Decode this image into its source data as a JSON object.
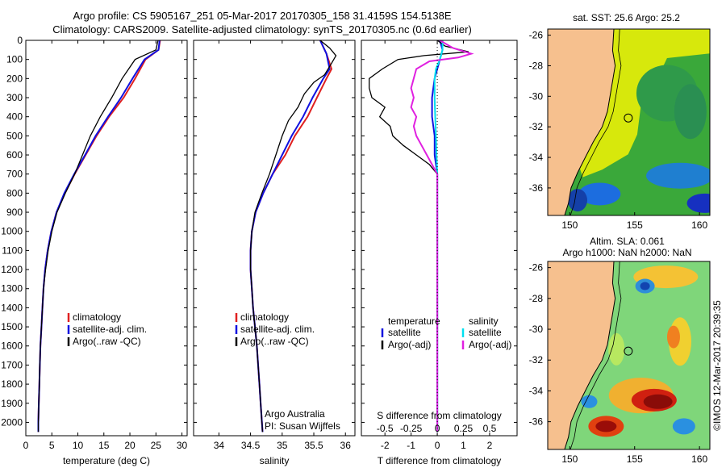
{
  "header": {
    "line1": "Argo profile: CS 5905167_251 05-Mar-2017 20170305_158 31.4159S 154.5138E",
    "line2": "Climatology: CARS2009. Satellite-adjusted climatology: synTS_20170305.nc (0.6d earlier)"
  },
  "colors": {
    "climatology": "#e02020",
    "satellite": "#1010e0",
    "argo": "#000000",
    "salinity_satellite": "#00e0f0",
    "salinity_argo": "#e020e0",
    "land": "#f6c08e"
  },
  "chart_data": [
    {
      "type": "line",
      "panel": "temperature",
      "xlabel": "temperature (deg C)",
      "xlim": [
        0,
        31
      ],
      "xticks": [
        "0",
        "5",
        "10",
        "15",
        "20",
        "25",
        "30"
      ],
      "xtick_values": [
        0,
        5,
        10,
        15,
        20,
        25,
        30
      ],
      "ylim": [
        2070,
        0
      ],
      "yticks": [
        "0",
        "100",
        "200",
        "300",
        "400",
        "500",
        "600",
        "700",
        "800",
        "900",
        "1000",
        "1100",
        "1200",
        "1300",
        "1400",
        "1500",
        "1600",
        "1700",
        "1800",
        "1900",
        "2000"
      ],
      "ytick_values": [
        0,
        100,
        200,
        300,
        400,
        500,
        600,
        700,
        800,
        900,
        1000,
        1100,
        1200,
        1300,
        1400,
        1500,
        1600,
        1700,
        1800,
        1900,
        2000
      ],
      "legend": [
        "climatology",
        "satellite-adj. clim.",
        "Argo(..raw -QC)"
      ],
      "series": [
        {
          "name": "climatology",
          "color": "red",
          "points": [
            [
              25.8,
              0
            ],
            [
              25.5,
              50
            ],
            [
              23,
              100
            ],
            [
              21,
              200
            ],
            [
              18.8,
              300
            ],
            [
              16,
              400
            ],
            [
              13.6,
              500
            ],
            [
              11.5,
              600
            ],
            [
              9.4,
              700
            ],
            [
              7.5,
              800
            ],
            [
              5.9,
              900
            ],
            [
              4.9,
              1000
            ],
            [
              4.2,
              1100
            ],
            [
              3.7,
              1200
            ],
            [
              3.4,
              1300
            ],
            [
              3.2,
              1400
            ],
            [
              3,
              1500
            ],
            [
              2.8,
              1600
            ],
            [
              2.7,
              1700
            ],
            [
              2.6,
              1800
            ],
            [
              2.5,
              1900
            ],
            [
              2.4,
              2000
            ],
            [
              2.4,
              2050
            ]
          ]
        },
        {
          "name": "satellite-adj. clim.",
          "color": "blue",
          "points": [
            [
              25.7,
              0
            ],
            [
              25.5,
              50
            ],
            [
              22.8,
              100
            ],
            [
              20.5,
              200
            ],
            [
              18.3,
              300
            ],
            [
              15.8,
              400
            ],
            [
              13.4,
              500
            ],
            [
              11.4,
              600
            ],
            [
              9.3,
              700
            ],
            [
              7.4,
              800
            ],
            [
              5.9,
              900
            ],
            [
              4.9,
              1000
            ],
            [
              4.2,
              1100
            ],
            [
              3.7,
              1200
            ],
            [
              3.4,
              1300
            ],
            [
              3.2,
              1400
            ],
            [
              3,
              1500
            ],
            [
              2.8,
              1600
            ],
            [
              2.7,
              1700
            ],
            [
              2.6,
              1800
            ],
            [
              2.5,
              1900
            ],
            [
              2.4,
              2000
            ],
            [
              2.4,
              2050
            ]
          ]
        },
        {
          "name": "Argo(..raw -QC)",
          "color": "black",
          "points": [
            [
              25.4,
              0
            ],
            [
              25,
              50
            ],
            [
              21,
              100
            ],
            [
              18.5,
              200
            ],
            [
              16.5,
              300
            ],
            [
              14.3,
              400
            ],
            [
              12.4,
              500
            ],
            [
              10.9,
              600
            ],
            [
              9.4,
              700
            ],
            [
              7.6,
              800
            ],
            [
              6,
              900
            ],
            [
              5,
              1000
            ],
            [
              4.3,
              1100
            ],
            [
              3.8,
              1200
            ],
            [
              3.4,
              1300
            ],
            [
              3.2,
              1400
            ],
            [
              3,
              1500
            ],
            [
              2.8,
              1600
            ],
            [
              2.7,
              1700
            ],
            [
              2.6,
              1800
            ],
            [
              2.5,
              1900
            ],
            [
              2.4,
              2000
            ],
            [
              2.4,
              2050
            ]
          ]
        }
      ]
    },
    {
      "type": "line",
      "panel": "salinity",
      "xlabel": "salinity",
      "xlim": [
        33.6,
        36.15
      ],
      "xticks": [
        "34",
        "34.5",
        "35",
        "35.5",
        "36"
      ],
      "xtick_values": [
        34,
        34.5,
        35,
        35.5,
        36
      ],
      "ylim": [
        2070,
        0
      ],
      "legend": [
        "climatology",
        "satellite-adj. clim.",
        "Argo(..raw -QC)"
      ],
      "annotation": [
        "Argo Australia",
        "PI: Susan Wijffels"
      ],
      "series": [
        {
          "name": "climatology",
          "color": "red",
          "points": [
            [
              35.6,
              0
            ],
            [
              35.7,
              70
            ],
            [
              35.78,
              150
            ],
            [
              35.7,
              200
            ],
            [
              35.55,
              300
            ],
            [
              35.4,
              400
            ],
            [
              35.2,
              500
            ],
            [
              35.05,
              600
            ],
            [
              34.85,
              700
            ],
            [
              34.7,
              800
            ],
            [
              34.58,
              900
            ],
            [
              34.52,
              1000
            ],
            [
              34.5,
              1100
            ],
            [
              34.5,
              1200
            ],
            [
              34.52,
              1300
            ],
            [
              34.54,
              1400
            ],
            [
              34.57,
              1500
            ],
            [
              34.6,
              1600
            ],
            [
              34.62,
              1700
            ],
            [
              34.64,
              1800
            ],
            [
              34.66,
              1900
            ],
            [
              34.68,
              2000
            ],
            [
              34.69,
              2050
            ]
          ]
        },
        {
          "name": "satellite-adj. clim.",
          "color": "blue",
          "points": [
            [
              35.6,
              0
            ],
            [
              35.7,
              70
            ],
            [
              35.75,
              150
            ],
            [
              35.65,
              200
            ],
            [
              35.48,
              300
            ],
            [
              35.33,
              400
            ],
            [
              35.15,
              500
            ],
            [
              35,
              600
            ],
            [
              34.85,
              700
            ],
            [
              34.7,
              800
            ],
            [
              34.58,
              900
            ],
            [
              34.52,
              1000
            ],
            [
              34.5,
              1100
            ],
            [
              34.5,
              1200
            ],
            [
              34.52,
              1300
            ],
            [
              34.54,
              1400
            ],
            [
              34.57,
              1500
            ],
            [
              34.6,
              1600
            ],
            [
              34.62,
              1700
            ],
            [
              34.64,
              1800
            ],
            [
              34.66,
              1900
            ],
            [
              34.68,
              2000
            ],
            [
              34.69,
              2050
            ]
          ]
        },
        {
          "name": "Argo(..raw -QC)",
          "color": "black",
          "points": [
            [
              35.6,
              0
            ],
            [
              35.75,
              40
            ],
            [
              35.85,
              80
            ],
            [
              35.78,
              120
            ],
            [
              35.67,
              180
            ],
            [
              35.5,
              220
            ],
            [
              35.35,
              280
            ],
            [
              35.25,
              350
            ],
            [
              35.1,
              420
            ],
            [
              35,
              500
            ],
            [
              34.9,
              600
            ],
            [
              34.8,
              700
            ],
            [
              34.68,
              800
            ],
            [
              34.57,
              900
            ],
            [
              34.52,
              1000
            ],
            [
              34.5,
              1100
            ],
            [
              34.5,
              1200
            ],
            [
              34.52,
              1300
            ],
            [
              34.54,
              1400
            ],
            [
              34.57,
              1500
            ],
            [
              34.6,
              1600
            ],
            [
              34.62,
              1700
            ],
            [
              34.64,
              1800
            ],
            [
              34.66,
              1900
            ],
            [
              34.68,
              2000
            ],
            [
              34.69,
              2050
            ]
          ]
        }
      ]
    },
    {
      "type": "line",
      "panel": "difference",
      "xlabel": "T difference from climatology",
      "xlabel_top": "S difference from climatology",
      "xlim": [
        -2.9,
        3.05
      ],
      "xticks": [
        "-2",
        "-1",
        "0",
        "1",
        "2"
      ],
      "xtick_values": [
        -2,
        -1,
        0,
        1,
        2
      ],
      "sticks": [
        "-0.5",
        "-0.25",
        "0",
        "0.25",
        "0.5"
      ],
      "stick_values": [
        -0.5,
        -0.25,
        0,
        0.25,
        0.5
      ],
      "ylim": [
        2070,
        0
      ],
      "legend_t": {
        "title": "temperature",
        "items": [
          "satellite",
          "Argo(-adj)"
        ]
      },
      "legend_s": {
        "title": "salinity",
        "items": [
          "satellite",
          "Argo(-adj)"
        ]
      },
      "series": [
        {
          "name": "temperature satellite",
          "color": "blue",
          "points": [
            [
              0.1,
              0
            ],
            [
              0.2,
              50
            ],
            [
              0.1,
              100
            ],
            [
              -0.1,
              200
            ],
            [
              -0.2,
              300
            ],
            [
              -0.2,
              400
            ],
            [
              -0.1,
              500
            ],
            [
              -0.1,
              600
            ],
            [
              0,
              700
            ],
            [
              0,
              800
            ],
            [
              0,
              1000
            ],
            [
              0,
              2050
            ]
          ]
        },
        {
          "name": "temperature Argo(-adj)",
          "color": "black",
          "points": [
            [
              0,
              0
            ],
            [
              0.3,
              30
            ],
            [
              1.2,
              60
            ],
            [
              -0.5,
              80
            ],
            [
              -1.5,
              100
            ],
            [
              -2.1,
              150
            ],
            [
              -2.6,
              200
            ],
            [
              -2.6,
              250
            ],
            [
              -2.5,
              300
            ],
            [
              -2,
              350
            ],
            [
              -2.2,
              400
            ],
            [
              -1.8,
              450
            ],
            [
              -1.7,
              500
            ],
            [
              -1.3,
              550
            ],
            [
              -0.8,
              600
            ],
            [
              -0.3,
              650
            ],
            [
              0,
              700
            ],
            [
              0,
              800
            ],
            [
              0,
              1000
            ],
            [
              0,
              2050
            ]
          ]
        },
        {
          "name": "salinity satellite",
          "color": "cyan",
          "points": [
            [
              0.2,
              0
            ],
            [
              0.2,
              50
            ],
            [
              0.1,
              100
            ],
            [
              -0.05,
              150
            ],
            [
              -0.1,
              200
            ],
            [
              -0.1,
              300
            ],
            [
              -0.08,
              400
            ],
            [
              -0.05,
              500
            ],
            [
              -0.03,
              600
            ],
            [
              0,
              700
            ],
            [
              0,
              800
            ],
            [
              0,
              2050
            ]
          ]
        },
        {
          "name": "salinity Argo(-adj)",
          "color": "magenta",
          "points": [
            [
              0.1,
              0
            ],
            [
              0.6,
              40
            ],
            [
              1.3,
              70
            ],
            [
              0.8,
              90
            ],
            [
              -0.3,
              110
            ],
            [
              -0.8,
              150
            ],
            [
              -0.9,
              200
            ],
            [
              -1,
              250
            ],
            [
              -0.9,
              300
            ],
            [
              -1,
              350
            ],
            [
              -0.8,
              400
            ],
            [
              -0.9,
              450
            ],
            [
              -0.8,
              500
            ],
            [
              -0.6,
              550
            ],
            [
              -0.4,
              600
            ],
            [
              -0.2,
              650
            ],
            [
              0,
              700
            ],
            [
              0,
              800
            ],
            [
              0,
              2050
            ]
          ]
        }
      ]
    },
    {
      "type": "heatmap",
      "panel": "sst-map",
      "title": "sat. SST: 25.6  Argo: 25.2",
      "xticks": [
        "150",
        "155",
        "160"
      ],
      "xtick_values": [
        150,
        155,
        160
      ],
      "yticks": [
        "-26",
        "-28",
        "-30",
        "-32",
        "-34",
        "-36"
      ],
      "ytick_values": [
        -26,
        -28,
        -30,
        -32,
        -34,
        -36
      ],
      "xlim": [
        148.3,
        160.8
      ],
      "ylim": [
        -25.6,
        -37.8
      ],
      "float_location": [
        154.51,
        -31.42
      ]
    },
    {
      "type": "heatmap",
      "panel": "sla-map",
      "title_line1": "Altim. SLA: 0.061",
      "title_line2": "Argo h1000: NaN  h2000: NaN",
      "xticks": [
        "150",
        "155",
        "160"
      ],
      "xtick_values": [
        150,
        155,
        160
      ],
      "yticks": [
        "-26",
        "-28",
        "-30",
        "-32",
        "-34",
        "-36"
      ],
      "ytick_values": [
        -26,
        -28,
        -30,
        -32,
        -34,
        -36
      ],
      "xlim": [
        148.3,
        160.8
      ],
      "ylim": [
        -25.6,
        -37.8
      ],
      "float_location": [
        154.51,
        -31.42
      ]
    }
  ],
  "credit": "©IMOS 12-Mar-2017 20:39:35"
}
